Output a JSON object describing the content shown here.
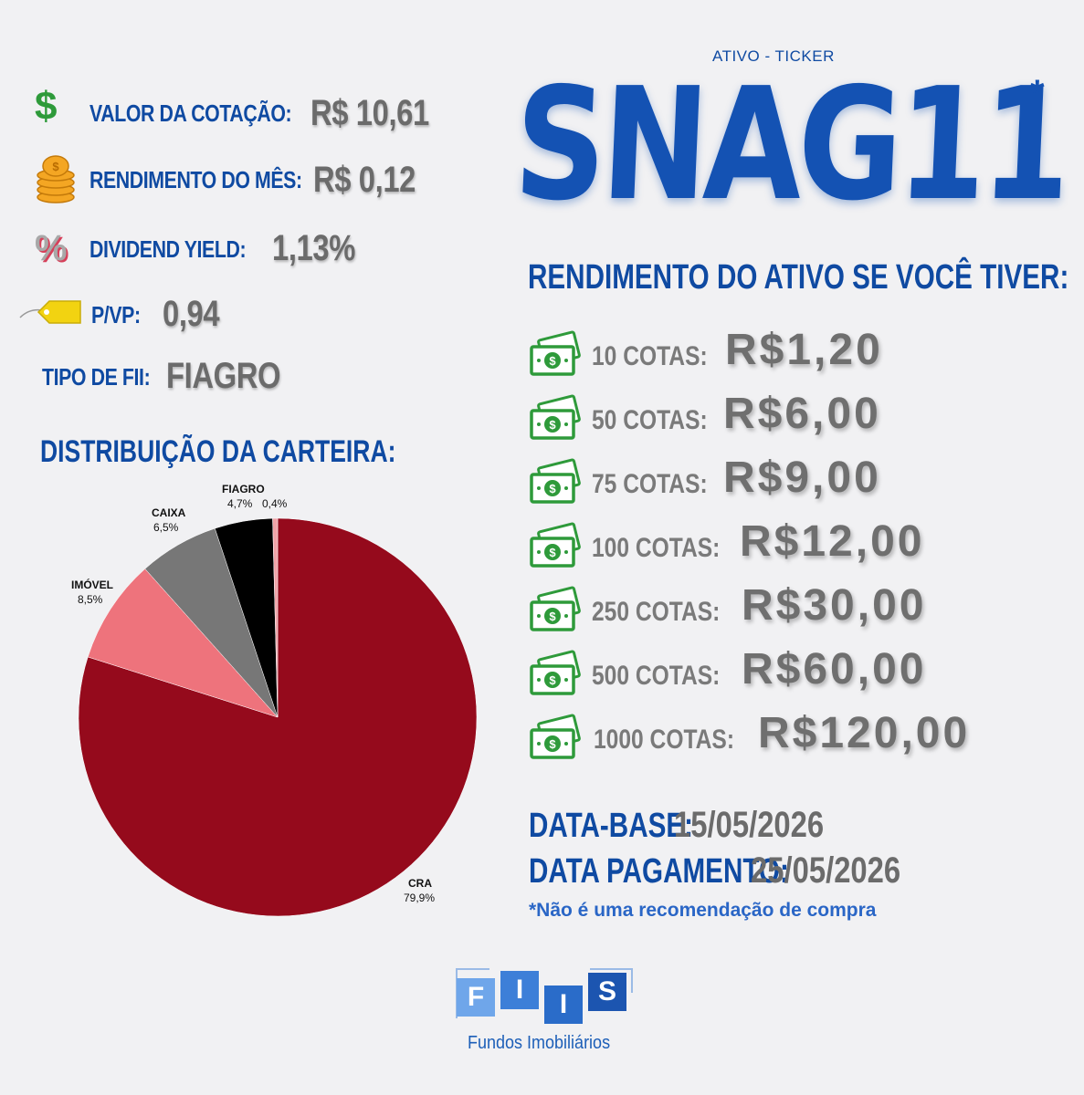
{
  "metrics": {
    "cotacao": {
      "label": "VALOR DA COTAÇÃO:",
      "value": "R$ 10,61"
    },
    "rendimento": {
      "label": "RENDIMENTO DO MÊS:",
      "value": "R$ 0,12"
    },
    "dy": {
      "label": "DIVIDEND YIELD:",
      "value": "1,13%"
    },
    "pvp": {
      "label": "P/VP:",
      "value": "0,94"
    },
    "tipo": {
      "label": "TIPO DE FII:",
      "value": "FIAGRO"
    }
  },
  "ticker": {
    "caption": "ATIVO - TICKER",
    "name": "SNAG11",
    "star": "*"
  },
  "distribution_title": "DISTRIBUIÇÃO DA CARTEIRA:",
  "chart_data": {
    "type": "pie",
    "title": "",
    "slices": [
      {
        "label": "CRA",
        "value": 79.9,
        "display": "79,9%",
        "color": "#950a1c"
      },
      {
        "label": "IMÓVEL",
        "value": 8.5,
        "display": "8,5%",
        "color": "#ee737c"
      },
      {
        "label": "CAIXA",
        "value": 6.5,
        "display": "6,5%",
        "color": "#777777"
      },
      {
        "label": "FIAGRO",
        "value": 4.7,
        "display": "4,7%",
        "color": "#000000"
      },
      {
        "label": "",
        "value": 0.4,
        "display": "0,4%",
        "color": "#f0a3a8"
      }
    ]
  },
  "rendimento_title": "RENDIMENTO DO ATIVO SE VOCÊ TIVER:",
  "cotas": [
    {
      "label": "10 COTAS:",
      "value": "R$1,20"
    },
    {
      "label": "50 COTAS:",
      "value": "R$6,00"
    },
    {
      "label": "75 COTAS:",
      "value": "R$9,00"
    },
    {
      "label": "100 COTAS:",
      "value": "R$12,00"
    },
    {
      "label": "250 COTAS:",
      "value": "R$30,00"
    },
    {
      "label": "500 COTAS:",
      "value": "R$60,00"
    },
    {
      "label": "1000 COTAS:",
      "value": "R$120,00"
    }
  ],
  "dates": {
    "base_label": "DATA-BASE:",
    "base_value": "15/05/2026",
    "pay_label": "DATA PAGAMENTO:",
    "pay_value": "25/05/2026"
  },
  "disclaimer": "*Não é uma recomendação de compra",
  "logo": {
    "letters": [
      "F",
      "I",
      "I",
      "S"
    ],
    "subtitle": "Fundos Imobiliários"
  },
  "colors": {
    "brand_blue": "#0f4aa2",
    "money_green": "#2e9a3a",
    "value_gray": "#6b6b6b"
  },
  "icons": {
    "cotacao": "dollar-sign-icon",
    "rendimento": "coin-stack-icon",
    "dy": "percent-icon",
    "pvp": "price-tag-icon",
    "cota": "money-bill-icon"
  }
}
